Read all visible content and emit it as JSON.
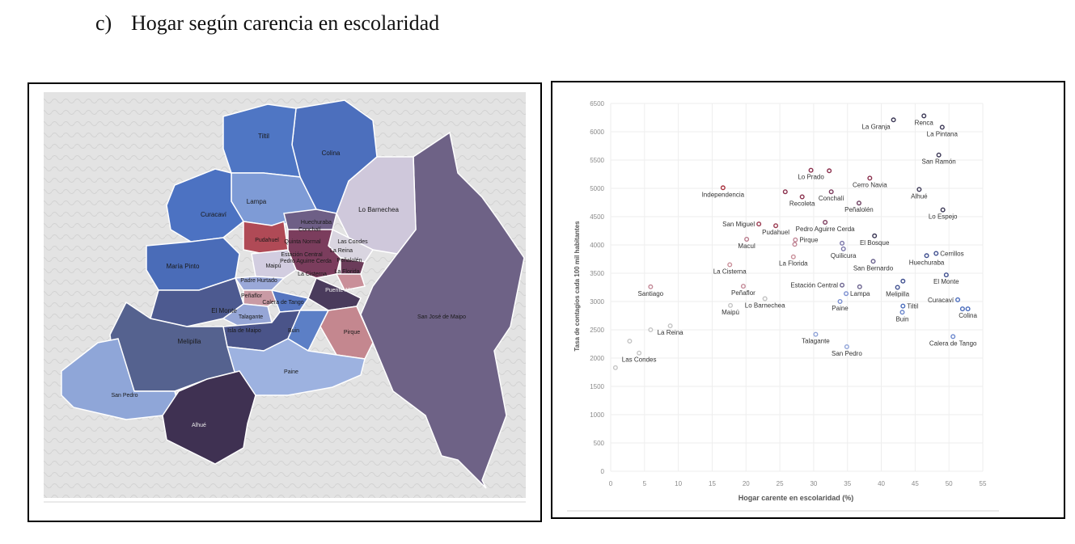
{
  "heading": {
    "marker": "c)",
    "title": "Hogar según carencia en escolaridad"
  },
  "colors": {
    "low": "#c9c9c9",
    "blue": "#4f76c4",
    "purple": "#3a2b52",
    "red": "#a8323e",
    "grid": "#eeeeee",
    "axis_text": "#8a8a8a",
    "label_text": "#333333"
  },
  "map": {
    "labels": [
      {
        "id": "tiltil",
        "text": "Tiltil",
        "color": "#4f76c4"
      },
      {
        "id": "colina",
        "text": "Colina",
        "color": "#4c6fbd"
      },
      {
        "id": "lampa",
        "text": "Lampa",
        "color": "#7e9bd6"
      },
      {
        "id": "curacavi",
        "text": "Curacaví",
        "color": "#4c72c2"
      },
      {
        "id": "lo-barnechea",
        "text": "Lo Barnechea",
        "color": "#cfc8db"
      },
      {
        "id": "huechuraba",
        "text": "Huechuraba",
        "color": "#6e5f86"
      },
      {
        "id": "conchali",
        "text": "Conchalí",
        "color": "#7e4b6a"
      },
      {
        "id": "pudahuel",
        "text": "Pudahuel",
        "color": "#b04a56"
      },
      {
        "id": "quinta-normal",
        "text": "Quinta Normal",
        "color": "#a34a5e"
      },
      {
        "id": "las-condes",
        "text": "Las Condes",
        "color": "#d9d5e0"
      },
      {
        "id": "la-reina",
        "text": "La Reina",
        "color": "#cdc7d8"
      },
      {
        "id": "maria-pinto",
        "text": "María Pinto",
        "color": "#4a6cb8"
      },
      {
        "id": "estacion-central",
        "text": "Estación Central",
        "color": "#8a7aa0"
      },
      {
        "id": "pedro-aguirre-cerda",
        "text": "Pedro Aguirre Cerda",
        "color": "#7b3d5d"
      },
      {
        "id": "maipu",
        "text": "Maipú",
        "color": "#d2cde0"
      },
      {
        "id": "penalolen",
        "text": "Peñalolén",
        "color": "#6b3c5a"
      },
      {
        "id": "la-florida",
        "text": "La Florida",
        "color": "#c98f99"
      },
      {
        "id": "padre-hurtado",
        "text": "Padre Hurtado",
        "color": "#9aa8d8"
      },
      {
        "id": "la-cisterna",
        "text": "La Cisterna",
        "color": "#8a5570"
      },
      {
        "id": "puente-alto",
        "text": "Puente Alto",
        "color": "#4a3b5c"
      },
      {
        "id": "penaflor",
        "text": "Peñaflor",
        "color": "#c99aa4"
      },
      {
        "id": "calera-de-tango",
        "text": "Calera de Tango",
        "color": "#5575c0"
      },
      {
        "id": "el-monte",
        "text": "El Monte",
        "color": "#4d5a90"
      },
      {
        "id": "talagante",
        "text": "Talagante",
        "color": "#96a6d6"
      },
      {
        "id": "isla-de-maipo",
        "text": "Isla de Maipo",
        "color": "#4a5489"
      },
      {
        "id": "buin",
        "text": "Buin",
        "color": "#5c7fc6"
      },
      {
        "id": "san-jose-de-maipo",
        "text": "San José de Maipo",
        "color": "#6e6286"
      },
      {
        "id": "pirque",
        "text": "Pirque",
        "color": "#c4878f"
      },
      {
        "id": "melipilla",
        "text": "Melipilla",
        "color": "#55628f"
      },
      {
        "id": "paine",
        "text": "Paine",
        "color": "#9db2e0"
      },
      {
        "id": "san-pedro",
        "text": "San Pedro",
        "color": "#8fa6d8"
      },
      {
        "id": "alhue",
        "text": "Alhué",
        "color": "#3f3152"
      }
    ]
  },
  "chart_data": {
    "type": "scatter",
    "xlabel": "Hogar carente en escolaridad (%)",
    "ylabel": "Tasa de contagios cada 100 mil habitantes",
    "xlim": [
      0,
      55
    ],
    "ylim": [
      0,
      6500
    ],
    "xticks": [
      0,
      5,
      10,
      15,
      20,
      25,
      30,
      35,
      40,
      45,
      50,
      55
    ],
    "yticks": [
      0,
      500,
      1000,
      1500,
      2000,
      2500,
      3000,
      3500,
      4000,
      4500,
      5000,
      5500,
      6000,
      6500
    ],
    "grid": true,
    "points": [
      {
        "label": "La Granja",
        "x": 41.8,
        "y": 6210,
        "color": "#3a3654",
        "lpos": "bl"
      },
      {
        "label": "Renca",
        "x": 46.3,
        "y": 6280,
        "color": "#3a3654",
        "lpos": "b"
      },
      {
        "label": "La Pintana",
        "x": 49.0,
        "y": 6080,
        "color": "#3a3654",
        "lpos": "b"
      },
      {
        "label": "San Ramón",
        "x": 48.5,
        "y": 5590,
        "color": "#3a3654",
        "lpos": "b"
      },
      {
        "label": "Lo Prado",
        "x": 29.6,
        "y": 5320,
        "color": "#8a2f4c",
        "lpos": "b"
      },
      {
        "label": "",
        "x": 32.3,
        "y": 5310,
        "color": "#8a2f4c",
        "lpos": "b"
      },
      {
        "label": "Cerro Navia",
        "x": 38.3,
        "y": 5180,
        "color": "#8a2f4c",
        "lpos": "b"
      },
      {
        "label": "Alhué",
        "x": 45.6,
        "y": 4980,
        "color": "#3a3654",
        "lpos": "b"
      },
      {
        "label": "Independencia",
        "x": 16.6,
        "y": 5010,
        "color": "#a8323e",
        "lpos": "b"
      },
      {
        "label": "",
        "x": 25.8,
        "y": 4940,
        "color": "#8a2f4c",
        "lpos": "b"
      },
      {
        "label": "Recoleta",
        "x": 28.3,
        "y": 4850,
        "color": "#8a2f4c",
        "lpos": "b"
      },
      {
        "label": "Conchalí",
        "x": 32.6,
        "y": 4940,
        "color": "#7c3b5d",
        "lpos": "b"
      },
      {
        "label": "Peñalolén",
        "x": 36.7,
        "y": 4740,
        "color": "#6d3e5f",
        "lpos": "b"
      },
      {
        "label": "Lo Espejo",
        "x": 49.1,
        "y": 4620,
        "color": "#3a3654",
        "lpos": "b"
      },
      {
        "label": "San Miguel",
        "x": 21.9,
        "y": 4370,
        "color": "#9a3a50",
        "lpos": "l"
      },
      {
        "label": "Pudahuel",
        "x": 24.4,
        "y": 4340,
        "color": "#9a3a50",
        "lpos": "b"
      },
      {
        "label": "Pedro Aguirre Cerda",
        "x": 31.7,
        "y": 4400,
        "color": "#7c3b5d",
        "lpos": "b"
      },
      {
        "label": "Macul",
        "x": 20.1,
        "y": 4100,
        "color": "#b87a8a",
        "lpos": "b"
      },
      {
        "label": "Pirque",
        "x": 27.3,
        "y": 4090,
        "color": "#c08595",
        "lpos": "r"
      },
      {
        "label": "El Bosque",
        "x": 39.0,
        "y": 4160,
        "color": "#3a3654",
        "lpos": "b"
      },
      {
        "label": "",
        "x": 27.2,
        "y": 4010,
        "color": "#c08595",
        "lpos": "b"
      },
      {
        "label": "",
        "x": 34.2,
        "y": 4030,
        "color": "#7a75a8",
        "lpos": "b"
      },
      {
        "label": "Quilicura",
        "x": 34.4,
        "y": 3930,
        "color": "#7a75a8",
        "lpos": "b"
      },
      {
        "label": "Cerrillos",
        "x": 48.1,
        "y": 3850,
        "color": "#3f4f8f",
        "lpos": "r"
      },
      {
        "label": "Huechuraba",
        "x": 46.7,
        "y": 3810,
        "color": "#3f4f8f",
        "lpos": "b"
      },
      {
        "label": "La Florida",
        "x": 27.0,
        "y": 3790,
        "color": "#c98f99",
        "lpos": "b"
      },
      {
        "label": "San Bernardo",
        "x": 38.8,
        "y": 3710,
        "color": "#6d6590",
        "lpos": "b"
      },
      {
        "label": "La Cisterna",
        "x": 17.6,
        "y": 3650,
        "color": "#c98f99",
        "lpos": "b"
      },
      {
        "label": "El Monte",
        "x": 49.6,
        "y": 3470,
        "color": "#3f4f8f",
        "lpos": "b"
      },
      {
        "label": "",
        "x": 43.2,
        "y": 3360,
        "color": "#3f4f8f",
        "lpos": "b"
      },
      {
        "label": "Estación Central",
        "x": 34.2,
        "y": 3290,
        "color": "#6d6590",
        "lpos": "l"
      },
      {
        "label": "Melipilla",
        "x": 42.4,
        "y": 3250,
        "color": "#3f4f8f",
        "lpos": "b"
      },
      {
        "label": "",
        "x": 36.8,
        "y": 3260,
        "color": "#6d6590",
        "lpos": "b"
      },
      {
        "label": "Lampa",
        "x": 34.8,
        "y": 3140,
        "color": "#7a8ed0",
        "lpos": "r"
      },
      {
        "label": "Santiago",
        "x": 5.9,
        "y": 3260,
        "color": "#c48a98",
        "lpos": "b"
      },
      {
        "label": "Peñaflor",
        "x": 19.6,
        "y": 3270,
        "color": "#c48a98",
        "lpos": "b"
      },
      {
        "label": "",
        "x": 22.8,
        "y": 3050,
        "color": "#c4c4c4",
        "lpos": "b"
      },
      {
        "label": "Lo Barnechea",
        "x": 22.8,
        "y": 3050,
        "color": "#c4c4c4",
        "lpos": "b"
      },
      {
        "label": "Maipú",
        "x": 17.7,
        "y": 2930,
        "color": "#c4c4c4",
        "lpos": "b"
      },
      {
        "label": "Paine",
        "x": 33.9,
        "y": 3000,
        "color": "#7a8ed0",
        "lpos": "b"
      },
      {
        "label": "Curacaví",
        "x": 51.3,
        "y": 3030,
        "color": "#4a6cbc",
        "lpos": "l"
      },
      {
        "label": "Tiltil",
        "x": 43.2,
        "y": 2920,
        "color": "#4a6cbc",
        "lpos": "r"
      },
      {
        "label": "",
        "x": 52.0,
        "y": 2870,
        "color": "#4a6cbc",
        "lpos": "b"
      },
      {
        "label": "Colina",
        "x": 52.8,
        "y": 2870,
        "color": "#4a6cbc",
        "lpos": "b"
      },
      {
        "label": "Buin",
        "x": 43.1,
        "y": 2810,
        "color": "#6a86cc",
        "lpos": "b"
      },
      {
        "label": "La Reina",
        "x": 8.8,
        "y": 2570,
        "color": "#c4c4c4",
        "lpos": "b"
      },
      {
        "label": "",
        "x": 5.9,
        "y": 2500,
        "color": "#c4c4c4",
        "lpos": "b"
      },
      {
        "label": "Talagante",
        "x": 30.3,
        "y": 2420,
        "color": "#8fa3d8",
        "lpos": "b"
      },
      {
        "label": "Calera de Tango",
        "x": 50.6,
        "y": 2380,
        "color": "#6a86cc",
        "lpos": "b"
      },
      {
        "label": "",
        "x": 2.8,
        "y": 2300,
        "color": "#c4c4c4",
        "lpos": "b"
      },
      {
        "label": "San Pedro",
        "x": 34.9,
        "y": 2200,
        "color": "#8fa3d8",
        "lpos": "b"
      },
      {
        "label": "Las Condes",
        "x": 4.2,
        "y": 2090,
        "color": "#c4c4c4",
        "lpos": "b"
      },
      {
        "label": "",
        "x": 0.7,
        "y": 1830,
        "color": "#c4c4c4",
        "lpos": "b"
      }
    ]
  }
}
